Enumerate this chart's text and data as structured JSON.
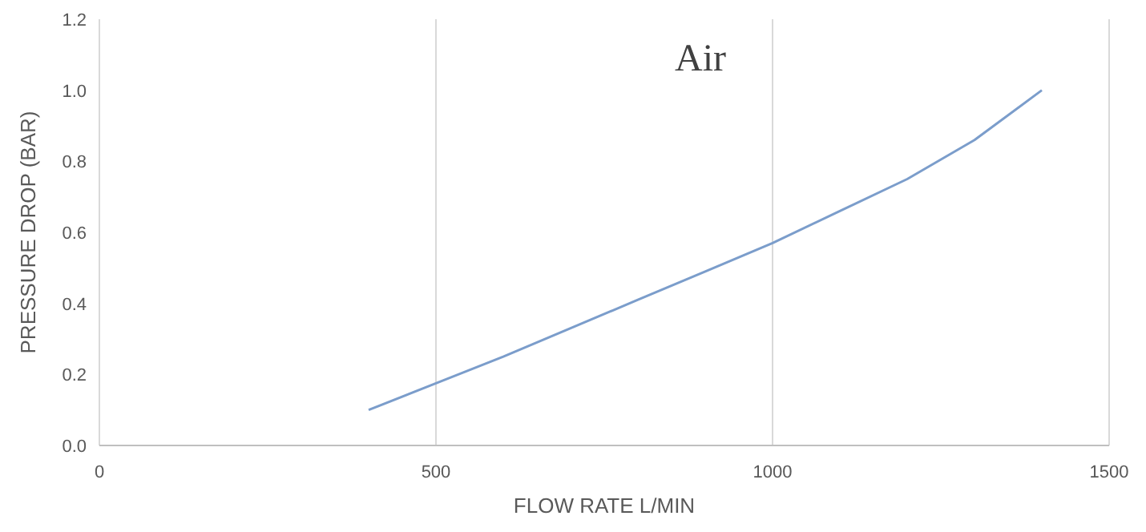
{
  "chart_data": {
    "type": "line",
    "title": "Air",
    "xlabel": "FLOW RATE L/MIN",
    "ylabel": "PRESSURE DROP (BAR)",
    "x": [
      400,
      500,
      600,
      700,
      800,
      900,
      1000,
      1100,
      1200,
      1300,
      1400
    ],
    "series": [
      {
        "color": "#7b9dcb",
        "values": [
          0.1,
          0.175,
          0.25,
          0.33,
          0.41,
          0.49,
          0.57,
          0.66,
          0.75,
          0.86,
          1.0
        ]
      }
    ],
    "xlim": [
      0,
      1500
    ],
    "xticks": [
      0,
      500,
      1000,
      1500
    ],
    "ylim": [
      0,
      1.2
    ],
    "yticks": [
      {
        "value": 0,
        "label": "0.0"
      },
      {
        "value": 0.2,
        "label": "0.2"
      },
      {
        "value": 0.4,
        "label": "0.4"
      },
      {
        "value": 0.6,
        "label": "0.6"
      },
      {
        "value": 0.8,
        "label": "0.8"
      },
      {
        "value": 1,
        "label": "1.0"
      },
      {
        "value": 1.2,
        "label": "1.2"
      }
    ],
    "grid": "x",
    "marker": "none",
    "line_style": "solid"
  }
}
